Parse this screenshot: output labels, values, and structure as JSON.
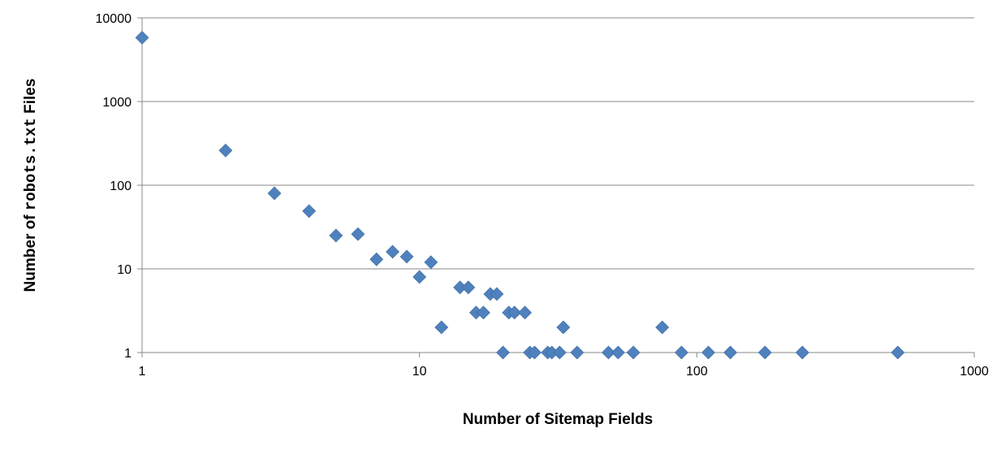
{
  "chart_data": {
    "type": "scatter",
    "xlabel": "Number of Sitemap Fields",
    "ylabel_parts": [
      "Number of ",
      "robots.txt",
      " Files"
    ],
    "x_scale": "log",
    "y_scale": "log",
    "xlim": [
      1,
      1000
    ],
    "ylim": [
      1,
      10000
    ],
    "x_ticks": [
      "1",
      "10",
      "100",
      "1000"
    ],
    "y_ticks": [
      "1",
      "10",
      "100",
      "1000",
      "10000"
    ],
    "grid": "horizontal major",
    "legend": "none",
    "marker": "diamond",
    "marker_color": "#4F81BD",
    "points": [
      {
        "x": 1,
        "y": 5800
      },
      {
        "x": 2,
        "y": 260
      },
      {
        "x": 3,
        "y": 80
      },
      {
        "x": 4,
        "y": 49
      },
      {
        "x": 5,
        "y": 25
      },
      {
        "x": 6,
        "y": 26
      },
      {
        "x": 7,
        "y": 13
      },
      {
        "x": 8,
        "y": 16
      },
      {
        "x": 9,
        "y": 14
      },
      {
        "x": 10,
        "y": 8
      },
      {
        "x": 11,
        "y": 12
      },
      {
        "x": 12,
        "y": 2
      },
      {
        "x": 14,
        "y": 6
      },
      {
        "x": 15,
        "y": 6
      },
      {
        "x": 16,
        "y": 3
      },
      {
        "x": 17,
        "y": 3
      },
      {
        "x": 18,
        "y": 5
      },
      {
        "x": 19,
        "y": 5
      },
      {
        "x": 20,
        "y": 1
      },
      {
        "x": 21,
        "y": 3
      },
      {
        "x": 22,
        "y": 3
      },
      {
        "x": 24,
        "y": 3
      },
      {
        "x": 25,
        "y": 1
      },
      {
        "x": 26,
        "y": 1
      },
      {
        "x": 29,
        "y": 1
      },
      {
        "x": 30,
        "y": 1
      },
      {
        "x": 32,
        "y": 1
      },
      {
        "x": 33,
        "y": 2
      },
      {
        "x": 37,
        "y": 1
      },
      {
        "x": 48,
        "y": 1
      },
      {
        "x": 52,
        "y": 1
      },
      {
        "x": 59,
        "y": 1
      },
      {
        "x": 75,
        "y": 2
      },
      {
        "x": 88,
        "y": 1
      },
      {
        "x": 110,
        "y": 1
      },
      {
        "x": 132,
        "y": 1
      },
      {
        "x": 176,
        "y": 1
      },
      {
        "x": 240,
        "y": 1
      },
      {
        "x": 530,
        "y": 1
      }
    ]
  }
}
